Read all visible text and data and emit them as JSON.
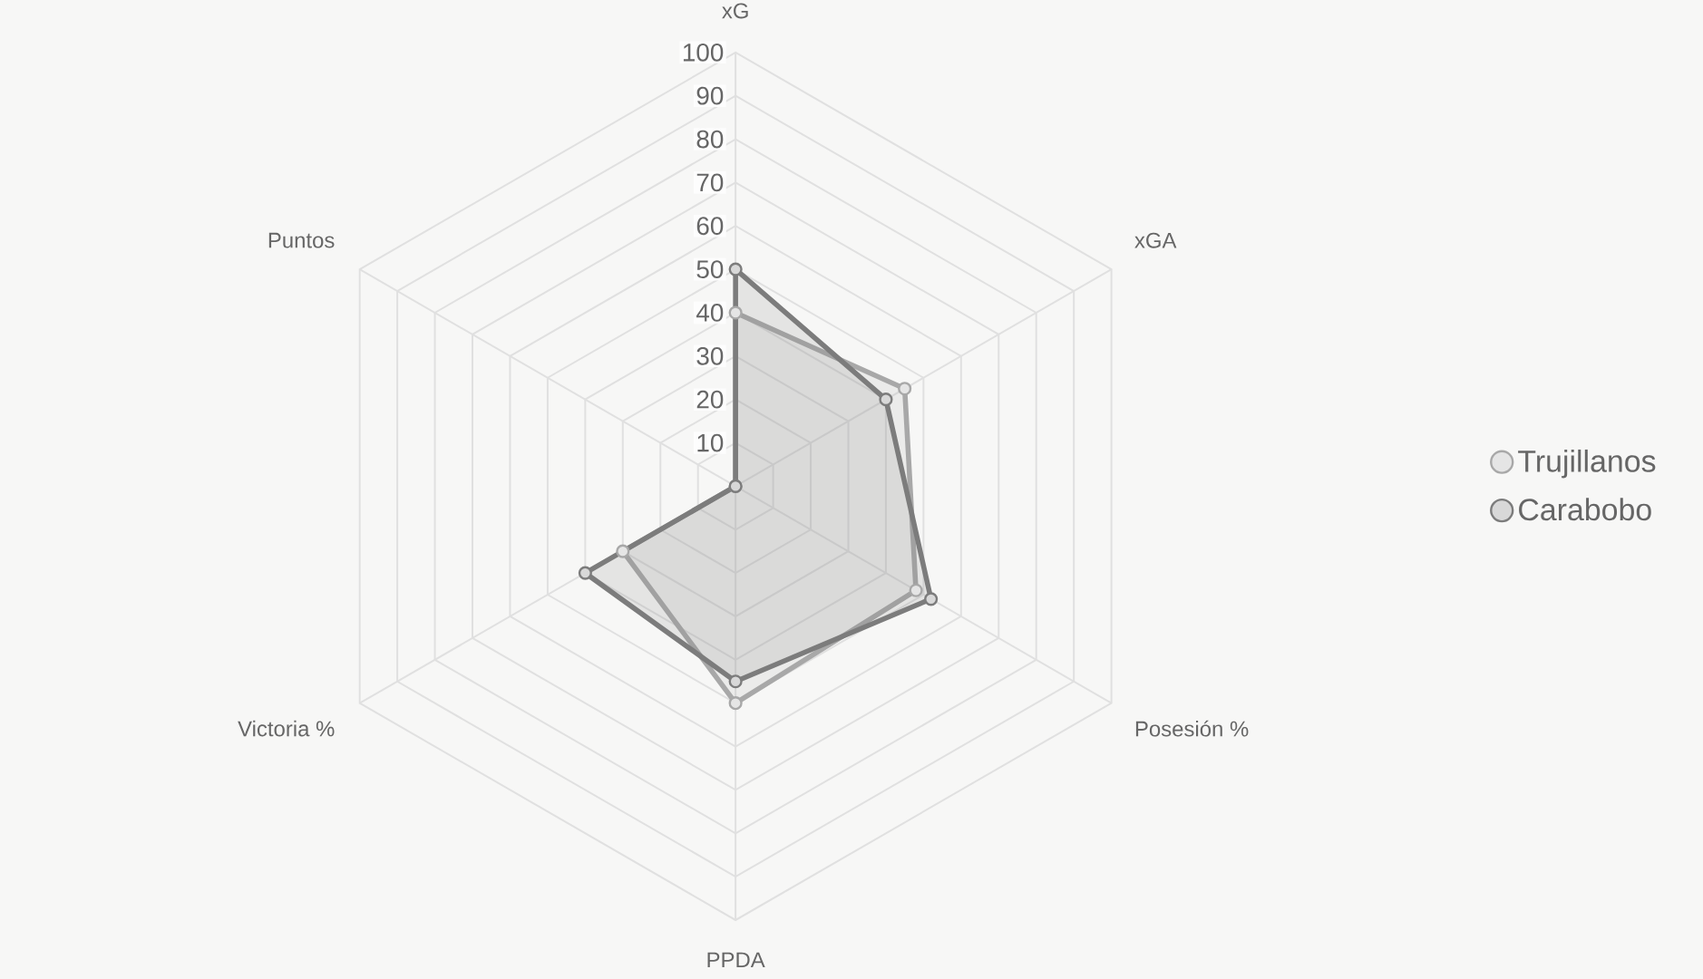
{
  "chart_data": {
    "type": "radar",
    "categories": [
      "xG",
      "xGA",
      "Posesión %",
      "PPDA",
      "Victoria %",
      "Puntos"
    ],
    "series": [
      {
        "name": "Trujillanos",
        "color": "#a8a8a8",
        "values": [
          40,
          45,
          48,
          50,
          30,
          0
        ]
      },
      {
        "name": "Carabobo",
        "color": "#7c7c7c",
        "values": [
          50,
          40,
          52,
          45,
          40,
          0
        ]
      }
    ],
    "ylim": [
      0,
      100
    ],
    "yticks": [
      10,
      20,
      30,
      40,
      50,
      60,
      70,
      80,
      90,
      100
    ],
    "grid": true,
    "legend": "right",
    "marker": "circle"
  }
}
